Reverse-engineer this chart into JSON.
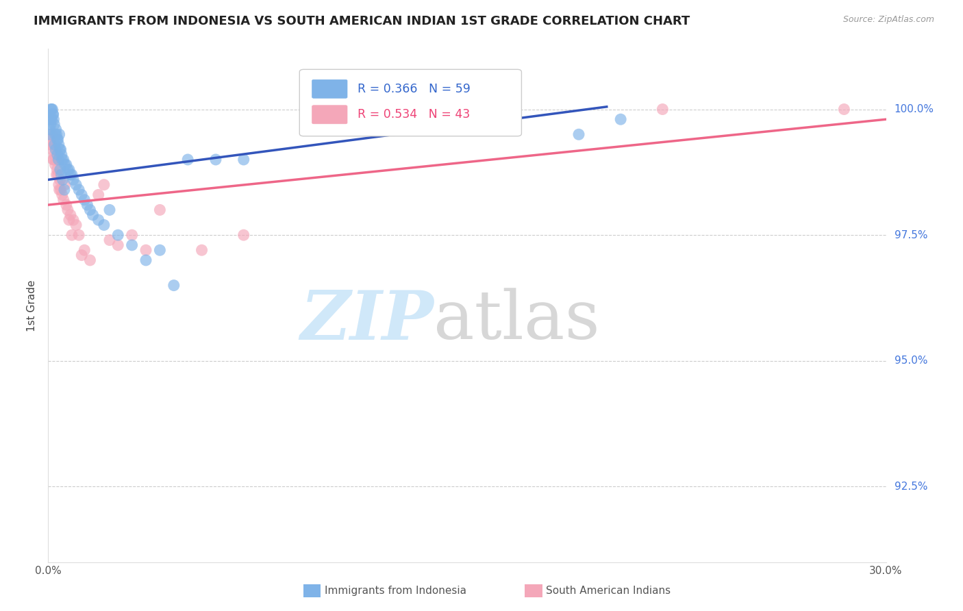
{
  "title": "IMMIGRANTS FROM INDONESIA VS SOUTH AMERICAN INDIAN 1ST GRADE CORRELATION CHART",
  "source_text": "Source: ZipAtlas.com",
  "xlabel_legend1": "Immigrants from Indonesia",
  "xlabel_legend2": "South American Indians",
  "ylabel": "1st Grade",
  "xlim": [
    0.0,
    30.0
  ],
  "ylim": [
    91.0,
    101.2
  ],
  "y_ticks": [
    92.5,
    95.0,
    97.5,
    100.0
  ],
  "y_tick_labels": [
    "92.5%",
    "95.0%",
    "97.5%",
    "100.0%"
  ],
  "R_blue": 0.366,
  "N_blue": 59,
  "R_pink": 0.534,
  "N_pink": 43,
  "blue_color": "#7fb3e8",
  "pink_color": "#f4a7b9",
  "blue_line_color": "#3355bb",
  "pink_line_color": "#ee6688",
  "blue_scatter_x": [
    0.05,
    0.08,
    0.1,
    0.12,
    0.15,
    0.18,
    0.2,
    0.22,
    0.25,
    0.28,
    0.3,
    0.32,
    0.35,
    0.38,
    0.4,
    0.42,
    0.45,
    0.48,
    0.5,
    0.55,
    0.6,
    0.65,
    0.7,
    0.75,
    0.8,
    0.85,
    0.9,
    1.0,
    1.1,
    1.2,
    1.3,
    1.4,
    1.5,
    1.6,
    1.8,
    2.0,
    2.2,
    2.5,
    3.0,
    3.5,
    4.0,
    4.5,
    5.0,
    6.0,
    7.0,
    0.06,
    0.09,
    0.13,
    0.17,
    0.23,
    0.27,
    0.33,
    0.37,
    0.43,
    0.47,
    0.52,
    0.58,
    19.0,
    20.5
  ],
  "blue_scatter_y": [
    99.5,
    99.8,
    100.0,
    100.0,
    100.0,
    99.9,
    99.8,
    99.7,
    99.5,
    99.6,
    99.5,
    99.4,
    99.4,
    99.3,
    99.5,
    99.2,
    99.2,
    99.1,
    99.0,
    99.0,
    98.9,
    98.9,
    98.8,
    98.8,
    98.7,
    98.7,
    98.6,
    98.5,
    98.4,
    98.3,
    98.2,
    98.1,
    98.0,
    97.9,
    97.8,
    97.7,
    98.0,
    97.5,
    97.3,
    97.0,
    97.2,
    96.5,
    99.0,
    99.0,
    99.0,
    99.6,
    99.7,
    99.8,
    99.9,
    99.3,
    99.2,
    99.1,
    99.0,
    98.8,
    98.7,
    98.6,
    98.4,
    99.5,
    99.8
  ],
  "pink_scatter_x": [
    0.05,
    0.08,
    0.12,
    0.15,
    0.18,
    0.22,
    0.25,
    0.28,
    0.32,
    0.35,
    0.38,
    0.42,
    0.45,
    0.5,
    0.55,
    0.6,
    0.7,
    0.8,
    0.9,
    1.0,
    1.1,
    1.3,
    1.5,
    1.8,
    2.0,
    2.5,
    3.0,
    0.1,
    0.2,
    0.3,
    0.4,
    0.65,
    0.75,
    0.85,
    1.2,
    2.2,
    3.5,
    4.0,
    5.5,
    7.0,
    10.0,
    22.0,
    28.5
  ],
  "pink_scatter_y": [
    99.3,
    99.4,
    99.5,
    99.2,
    99.0,
    99.1,
    98.9,
    99.0,
    98.8,
    98.7,
    98.5,
    98.6,
    98.4,
    98.3,
    98.2,
    98.5,
    98.0,
    97.9,
    97.8,
    97.7,
    97.5,
    97.2,
    97.0,
    98.3,
    98.5,
    97.3,
    97.5,
    99.3,
    99.0,
    98.7,
    98.4,
    98.1,
    97.8,
    97.5,
    97.1,
    97.4,
    97.2,
    98.0,
    97.2,
    97.5,
    100.0,
    100.0,
    100.0
  ],
  "blue_line_x0": 0.0,
  "blue_line_y0": 98.6,
  "blue_line_x1": 20.0,
  "blue_line_y1": 100.05,
  "pink_line_x0": 0.0,
  "pink_line_y0": 98.1,
  "pink_line_x1": 30.0,
  "pink_line_y1": 99.8
}
